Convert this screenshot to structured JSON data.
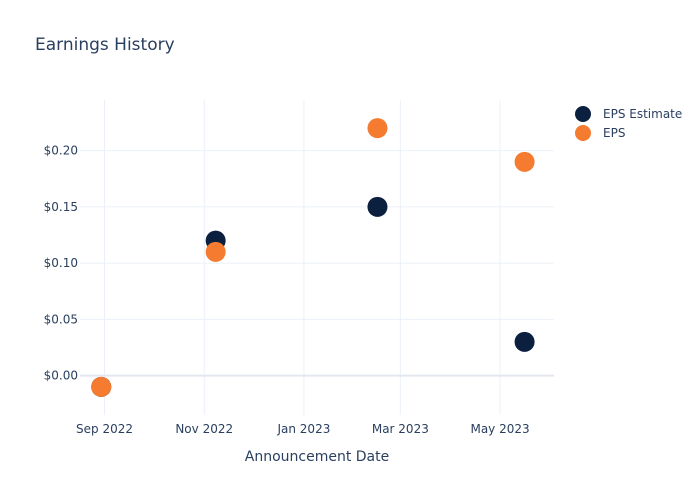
{
  "chart_data": {
    "type": "scatter",
    "title": "Earnings History",
    "xlabel": "Announcement Date",
    "ylabel": "",
    "x_ticks": [
      "Sep 2022",
      "Nov 2022",
      "Jan 2023",
      "Mar 2023",
      "May 2023"
    ],
    "y_ticks": [
      "$0.00",
      "$0.05",
      "$0.10",
      "$0.15",
      "$0.20"
    ],
    "ylim": [
      -0.035,
      0.245
    ],
    "xlim": [
      "2022-08-17",
      "2023-06-03"
    ],
    "grid": true,
    "legend_position": "top-right",
    "series": [
      {
        "name": "EPS Estimate",
        "color": "#0b1f3f",
        "points": [
          {
            "x": "2022-08-30",
            "y": -0.01
          },
          {
            "x": "2022-11-08",
            "y": 0.12
          },
          {
            "x": "2023-02-15",
            "y": 0.15
          },
          {
            "x": "2023-05-16",
            "y": 0.03
          }
        ]
      },
      {
        "name": "EPS",
        "color": "#f47b30",
        "points": [
          {
            "x": "2022-08-30",
            "y": -0.01
          },
          {
            "x": "2022-11-08",
            "y": 0.11
          },
          {
            "x": "2023-02-15",
            "y": 0.22
          },
          {
            "x": "2023-05-16",
            "y": 0.19
          }
        ]
      }
    ]
  }
}
